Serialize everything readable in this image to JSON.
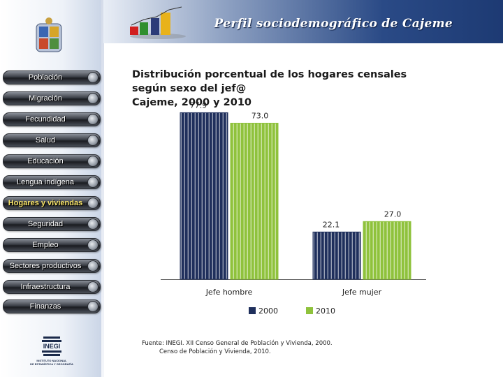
{
  "header": {
    "title": "Perfil sociodemográfico de Cajeme",
    "colors": {
      "banner_dark": "#1d3a73",
      "banner_light": "#e9eef6"
    }
  },
  "sidebar": {
    "items": [
      {
        "label": "Población",
        "active": false
      },
      {
        "label": "Migración",
        "active": false
      },
      {
        "label": "Fecundidad",
        "active": false
      },
      {
        "label": "Salud",
        "active": false
      },
      {
        "label": "Educación",
        "active": false
      },
      {
        "label": "Lengua indígena",
        "active": false
      },
      {
        "label": "Hogares y viviendas",
        "active": true
      },
      {
        "label": "Seguridad",
        "active": false
      },
      {
        "label": "Empleo",
        "active": false
      },
      {
        "label": "Sectores productivos",
        "active": false
      },
      {
        "label": "Infraestructura",
        "active": false
      },
      {
        "label": "Finanzas",
        "active": false
      }
    ],
    "logo_text": "INEGI",
    "logo_subtitle": [
      "INSTITUTO NACIONAL",
      "DE ESTADÍSTICA Y GEOGRAFÍA"
    ],
    "icons": [
      "state-crest-icon",
      "bar-chart-logo-icon",
      "inegi-logo-icon"
    ]
  },
  "chart_title_lines": [
    "Distribución porcentual de los hogares censales",
    "según sexo del jef@",
    "Cajeme, 2000 y 2010"
  ],
  "chart_data": {
    "type": "bar",
    "title": "Distribución porcentual de los hogares censales según sexo del jef@ Cajeme, 2000 y 2010",
    "categories": [
      "Jefe hombre",
      "Jefe mujer"
    ],
    "series": [
      {
        "name": "2000",
        "values": [
          77.9,
          22.1
        ],
        "labels": [
          "77.9",
          "22.1"
        ],
        "color": "#1f2f5c"
      },
      {
        "name": "2010",
        "values": [
          73.0,
          27.0
        ],
        "labels": [
          "73.0",
          "27.0"
        ],
        "color": "#8fc23c"
      }
    ],
    "xlabel": "",
    "ylabel": "",
    "ylim": [
      0,
      80
    ],
    "grid": false,
    "legend_position": "bottom"
  },
  "source": {
    "line1": "Fuente: INEGI. XII Censo General de Población y Vivienda, 2000.",
    "line2": "Censo de Población y Vivienda, 2010."
  }
}
